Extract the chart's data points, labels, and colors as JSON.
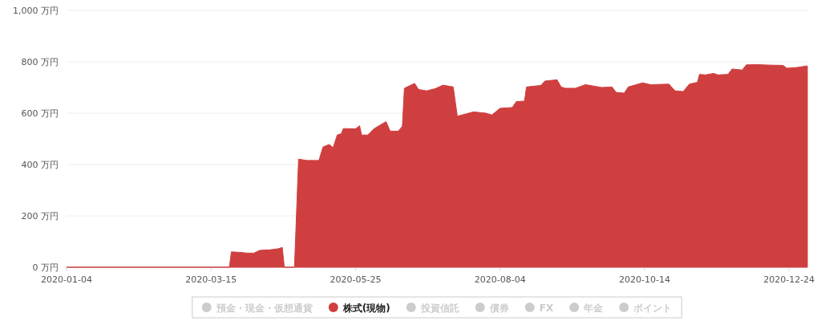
{
  "chart_data": {
    "type": "area",
    "x": [
      "2020-01-04",
      "2020-03-24",
      "2020-03-25",
      "2020-03-29",
      "2020-04-02",
      "2020-04-05",
      "2020-04-08",
      "2020-04-13",
      "2020-04-17",
      "2020-04-19",
      "2020-04-20",
      "2020-04-25",
      "2020-04-27",
      "2020-05-01",
      "2020-05-07",
      "2020-05-09",
      "2020-05-12",
      "2020-05-14",
      "2020-05-16",
      "2020-05-18",
      "2020-05-19",
      "2020-05-25",
      "2020-05-27",
      "2020-05-28",
      "2020-05-31",
      "2020-06-03",
      "2020-06-09",
      "2020-06-11",
      "2020-06-15",
      "2020-06-17",
      "2020-06-18",
      "2020-06-23",
      "2020-06-25",
      "2020-06-29",
      "2020-07-03",
      "2020-07-07",
      "2020-07-12",
      "2020-07-14",
      "2020-07-22",
      "2020-07-28",
      "2020-07-31",
      "2020-08-04",
      "2020-08-10",
      "2020-08-12",
      "2020-08-16",
      "2020-08-17",
      "2020-08-24",
      "2020-08-26",
      "2020-09-01",
      "2020-09-03",
      "2020-09-05",
      "2020-09-10",
      "2020-09-15",
      "2020-09-23",
      "2020-09-28",
      "2020-09-30",
      "2020-10-04",
      "2020-10-06",
      "2020-10-13",
      "2020-10-17",
      "2020-10-26",
      "2020-10-29",
      "2020-11-02",
      "2020-11-05",
      "2020-11-09",
      "2020-11-10",
      "2020-11-13",
      "2020-11-17",
      "2020-11-19",
      "2020-11-24",
      "2020-11-26",
      "2020-12-01",
      "2020-12-03",
      "2020-12-08",
      "2020-12-15",
      "2020-12-21",
      "2020-12-23",
      "2020-12-28",
      "2021-01-02"
    ],
    "series": [
      {
        "name": "預金・現金・仮想通貨",
        "color": "#cccccc",
        "values": [
          null,
          null,
          null,
          null,
          null,
          null,
          null,
          null,
          null,
          null,
          null,
          null,
          null,
          null,
          null,
          null,
          null,
          null,
          null,
          null,
          null,
          null,
          null,
          null,
          null,
          null,
          null,
          null,
          null,
          null,
          null,
          null,
          null,
          null,
          null,
          null,
          null,
          null,
          null,
          null,
          null,
          null,
          null,
          null,
          null,
          null,
          null,
          null,
          null,
          null,
          null,
          null,
          null,
          null,
          null,
          null,
          null,
          null,
          null,
          null,
          null,
          null,
          null,
          null,
          null,
          null,
          null,
          null,
          null,
          null,
          null,
          null,
          null,
          null,
          null,
          null,
          null,
          null,
          null
        ]
      },
      {
        "name": "株式(現物)",
        "color": "#cf3f3f",
        "values": [
          0,
          0,
          60,
          58,
          55,
          55,
          66,
          68,
          72,
          77,
          0,
          0,
          421,
          416,
          416,
          468,
          478,
          466,
          515,
          520,
          540,
          539,
          551,
          515,
          515,
          539,
          567,
          530,
          530,
          549,
          697,
          716,
          692,
          687,
          695,
          709,
          702,
          588,
          605,
          600,
          593,
          619,
          622,
          645,
          647,
          702,
          708,
          725,
          730,
          702,
          697,
          697,
          711,
          700,
          702,
          681,
          678,
          702,
          718,
          711,
          713,
          687,
          684,
          713,
          720,
          751,
          749,
          755,
          749,
          751,
          772,
          768,
          788,
          789,
          787,
          786,
          775,
          778,
          784
        ]
      },
      {
        "name": "投資信託",
        "color": "#cccccc",
        "values": [
          null,
          null,
          null,
          null,
          null,
          null,
          null,
          null,
          null,
          null,
          null,
          null,
          null,
          null,
          null,
          null,
          null,
          null,
          null,
          null,
          null,
          null,
          null,
          null,
          null,
          null,
          null,
          null,
          null,
          null,
          null,
          null,
          null,
          null,
          null,
          null,
          null,
          null,
          null,
          null,
          null,
          null,
          null,
          null,
          null,
          null,
          null,
          null,
          null,
          null,
          null,
          null,
          null,
          null,
          null,
          null,
          null,
          null,
          null,
          null,
          null,
          null,
          null,
          null,
          null,
          null,
          null,
          null,
          null,
          null,
          null,
          null,
          null,
          null,
          null,
          null,
          null,
          null,
          null
        ]
      },
      {
        "name": "債券",
        "color": "#cccccc",
        "values": [
          null,
          null,
          null,
          null,
          null,
          null,
          null,
          null,
          null,
          null,
          null,
          null,
          null,
          null,
          null,
          null,
          null,
          null,
          null,
          null,
          null,
          null,
          null,
          null,
          null,
          null,
          null,
          null,
          null,
          null,
          null,
          null,
          null,
          null,
          null,
          null,
          null,
          null,
          null,
          null,
          null,
          null,
          null,
          null,
          null,
          null,
          null,
          null,
          null,
          null,
          null,
          null,
          null,
          null,
          null,
          null,
          null,
          null,
          null,
          null,
          null,
          null,
          null,
          null,
          null,
          null,
          null,
          null,
          null,
          null,
          null,
          null,
          null,
          null,
          null,
          null,
          null,
          null,
          null
        ]
      },
      {
        "name": "FX",
        "color": "#cccccc",
        "values": [
          null,
          null,
          null,
          null,
          null,
          null,
          null,
          null,
          null,
          null,
          null,
          null,
          null,
          null,
          null,
          null,
          null,
          null,
          null,
          null,
          null,
          null,
          null,
          null,
          null,
          null,
          null,
          null,
          null,
          null,
          null,
          null,
          null,
          null,
          null,
          null,
          null,
          null,
          null,
          null,
          null,
          null,
          null,
          null,
          null,
          null,
          null,
          null,
          null,
          null,
          null,
          null,
          null,
          null,
          null,
          null,
          null,
          null,
          null,
          null,
          null,
          null,
          null,
          null,
          null,
          null,
          null,
          null,
          null,
          null,
          null,
          null,
          null,
          null,
          null,
          null,
          null,
          null,
          null
        ]
      },
      {
        "name": "年金",
        "color": "#cccccc",
        "values": [
          null,
          null,
          null,
          null,
          null,
          null,
          null,
          null,
          null,
          null,
          null,
          null,
          null,
          null,
          null,
          null,
          null,
          null,
          null,
          null,
          null,
          null,
          null,
          null,
          null,
          null,
          null,
          null,
          null,
          null,
          null,
          null,
          null,
          null,
          null,
          null,
          null,
          null,
          null,
          null,
          null,
          null,
          null,
          null,
          null,
          null,
          null,
          null,
          null,
          null,
          null,
          null,
          null,
          null,
          null,
          null,
          null,
          null,
          null,
          null,
          null,
          null,
          null,
          null,
          null,
          null,
          null,
          null,
          null,
          null,
          null,
          null,
          null,
          null,
          null,
          null,
          null,
          null,
          null
        ]
      },
      {
        "name": "ポイント",
        "color": "#cccccc",
        "values": [
          null,
          null,
          null,
          null,
          null,
          null,
          null,
          null,
          null,
          null,
          null,
          null,
          null,
          null,
          null,
          null,
          null,
          null,
          null,
          null,
          null,
          null,
          null,
          null,
          null,
          null,
          null,
          null,
          null,
          null,
          null,
          null,
          null,
          null,
          null,
          null,
          null,
          null,
          null,
          null,
          null,
          null,
          null,
          null,
          null,
          null,
          null,
          null,
          null,
          null,
          null,
          null,
          null,
          null,
          null,
          null,
          null,
          null,
          null,
          null,
          null,
          null,
          null,
          null,
          null,
          null,
          null,
          null,
          null,
          null,
          null,
          null,
          null,
          null,
          null,
          null,
          null,
          null,
          null
        ]
      }
    ],
    "xlim": [
      "2020-01-04",
      "2021-01-02"
    ],
    "xticks": [
      "2020-01-04",
      "2020-03-15",
      "2020-05-25",
      "2020-08-04",
      "2020-10-14",
      "2020-12-24"
    ],
    "ylim": [
      0,
      1000
    ],
    "yticks": [
      {
        "value": 0,
        "label": "0 万円"
      },
      {
        "value": 200,
        "label": "200 万円"
      },
      {
        "value": 400,
        "label": "400 万円"
      },
      {
        "value": 600,
        "label": "600 万円"
      },
      {
        "value": 800,
        "label": "800 万円"
      },
      {
        "value": 1000,
        "label": "1,000 万円"
      }
    ],
    "grid": "y",
    "legend": "bottom"
  }
}
